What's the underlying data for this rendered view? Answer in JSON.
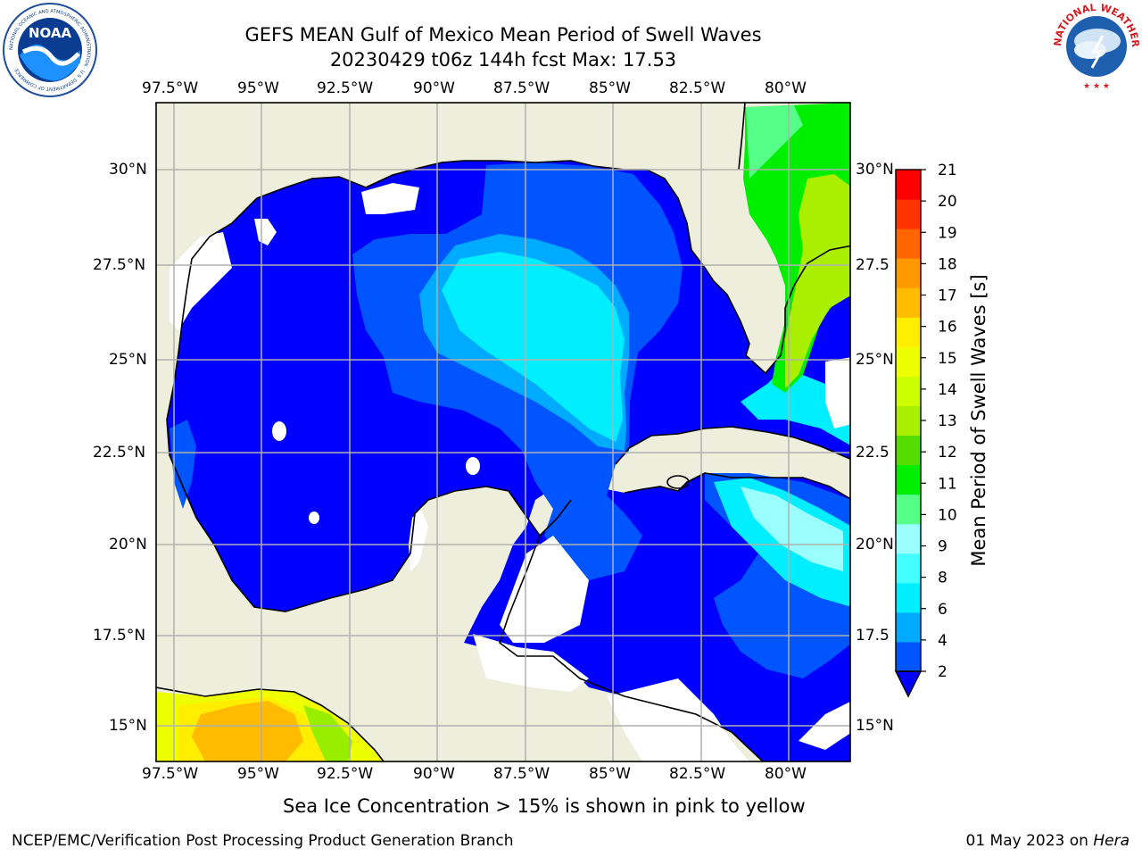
{
  "title": {
    "line1": "GEFS MEAN Gulf of Mexico Mean Period of Swell Waves",
    "line2": "20230429 t06z 144h fcst   Max: 17.53"
  },
  "map": {
    "lon_ticks": [
      "97.5°W",
      "95°W",
      "92.5°W",
      "90°W",
      "87.5°W",
      "85°W",
      "82.5°W",
      "80°W"
    ],
    "lat_ticks_left": [
      "30°N",
      "27.5°N",
      "25°N",
      "22.5°N",
      "20°N",
      "17.5°N",
      "15°N"
    ],
    "lat_ticks_right": [
      "30°N",
      "27.5",
      "25°N",
      "22.5",
      "20°N",
      "17.5",
      "15°N"
    ],
    "land_color": "#eeeedd",
    "grid_color": "#b0b0b0"
  },
  "colorbar": {
    "label": "Mean Period of Swell Waves [s]",
    "ticks": [
      "2",
      "4",
      "6",
      "8",
      "9",
      "10",
      "11",
      "12",
      "13",
      "14",
      "15",
      "16",
      "17",
      "18",
      "19",
      "20",
      "21"
    ],
    "colors": [
      "#0055ff",
      "#00aaff",
      "#00eeff",
      "#44ffff",
      "#99ffff",
      "#55ff88",
      "#00ee00",
      "#55dd00",
      "#aaee00",
      "#ccff00",
      "#eeff00",
      "#ffee00",
      "#ffbb00",
      "#ff9900",
      "#ff6600",
      "#ff3300",
      "#ff0000"
    ],
    "extend_color": "#0000ff"
  },
  "subtitle": "Sea Ice Concentration > 15% is shown in pink to yellow",
  "footer": {
    "left": "NCEP/EMC/Verification Post Processing Product Generation Branch",
    "right_date": "01 May 2023 on",
    "right_host": "Hera"
  },
  "logos": {
    "noaa_text": "NOAA",
    "noaa_ring": "NATIONAL OCEANIC AND ATMOSPHERIC ADMINISTRATION · U.S. DEPARTMENT OF COMMERCE",
    "nws_ring": "NATIONAL WEATHER SERVICE"
  }
}
